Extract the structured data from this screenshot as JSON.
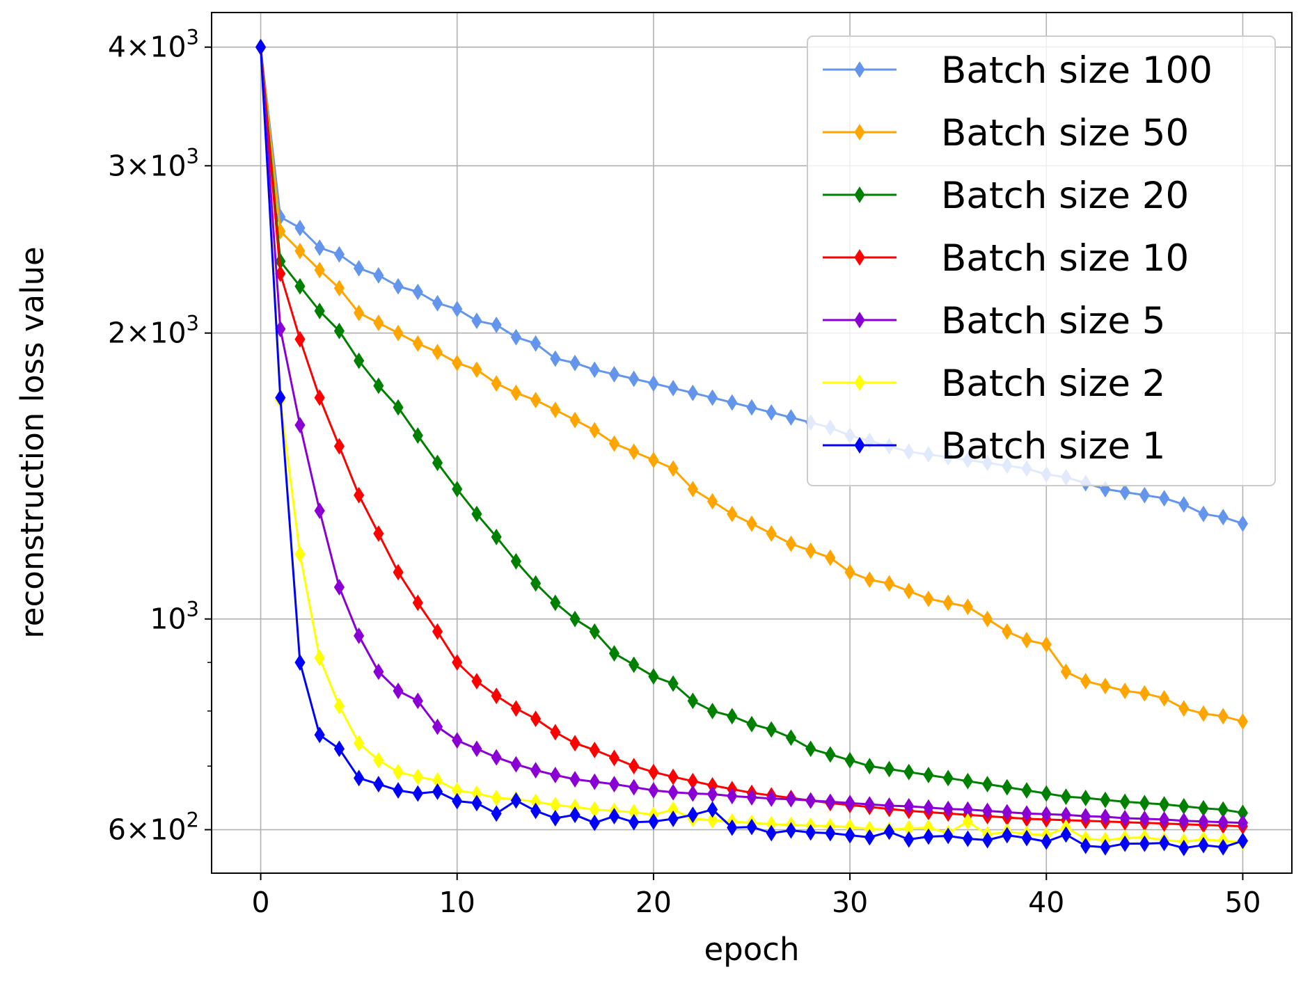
{
  "chart_data": {
    "type": "line",
    "title": "",
    "xlabel": "epoch",
    "ylabel": "reconstruction loss value",
    "yscale": "log",
    "xlim": [
      -2.5,
      52.5
    ],
    "ylim": [
      540,
      4350
    ],
    "grid": true,
    "legend_position": "upper right",
    "x_ticks": [
      0,
      10,
      20,
      30,
      40,
      50
    ],
    "y_ticks_major": [
      {
        "value": 1000,
        "base": "10",
        "exp": "3",
        "mult": ""
      },
      {
        "value": 2000,
        "base": "10",
        "exp": "3",
        "mult": "2"
      },
      {
        "value": 3000,
        "base": "10",
        "exp": "3",
        "mult": "3"
      },
      {
        "value": 4000,
        "base": "10",
        "exp": "3",
        "mult": "4"
      },
      {
        "value": 600,
        "base": "10",
        "exp": "2",
        "mult": "6"
      }
    ],
    "y_ticks_minor": [
      700,
      800,
      900
    ],
    "x": [
      0,
      1,
      2,
      3,
      4,
      5,
      6,
      7,
      8,
      9,
      10,
      11,
      12,
      13,
      14,
      15,
      16,
      17,
      18,
      19,
      20,
      21,
      22,
      23,
      24,
      25,
      26,
      27,
      28,
      29,
      30,
      31,
      32,
      33,
      34,
      35,
      36,
      37,
      38,
      39,
      40,
      41,
      42,
      43,
      44,
      45,
      46,
      47,
      48,
      49,
      50
    ],
    "series": [
      {
        "name": "Batch size 100",
        "color": "#6495ED",
        "values": [
          4000,
          2650,
          2580,
          2460,
          2420,
          2340,
          2300,
          2240,
          2210,
          2150,
          2120,
          2060,
          2040,
          1980,
          1950,
          1880,
          1860,
          1830,
          1810,
          1790,
          1770,
          1750,
          1730,
          1710,
          1690,
          1670,
          1650,
          1630,
          1610,
          1590,
          1560,
          1540,
          1520,
          1500,
          1490,
          1480,
          1470,
          1460,
          1450,
          1440,
          1420,
          1410,
          1390,
          1370,
          1360,
          1350,
          1340,
          1320,
          1290,
          1280,
          1260
        ]
      },
      {
        "name": "Batch size 50",
        "color": "#FFA500",
        "values": [
          4000,
          2560,
          2440,
          2330,
          2230,
          2100,
          2050,
          2000,
          1950,
          1910,
          1860,
          1830,
          1770,
          1730,
          1700,
          1660,
          1620,
          1580,
          1530,
          1500,
          1470,
          1440,
          1370,
          1330,
          1290,
          1260,
          1230,
          1200,
          1180,
          1160,
          1120,
          1100,
          1090,
          1070,
          1050,
          1040,
          1030,
          1000,
          970,
          950,
          940,
          880,
          860,
          850,
          840,
          835,
          825,
          805,
          795,
          790,
          780
        ]
      },
      {
        "name": "Batch size 20",
        "color": "#008000",
        "values": [
          4000,
          2380,
          2240,
          2110,
          2010,
          1870,
          1760,
          1670,
          1560,
          1460,
          1370,
          1290,
          1220,
          1150,
          1090,
          1040,
          1000,
          970,
          920,
          895,
          870,
          855,
          820,
          800,
          790,
          775,
          765,
          750,
          730,
          720,
          710,
          700,
          695,
          690,
          685,
          680,
          675,
          670,
          665,
          660,
          655,
          650,
          648,
          645,
          642,
          640,
          638,
          635,
          632,
          630,
          625
        ]
      },
      {
        "name": "Batch size 10",
        "color": "#FF0000",
        "values": [
          4000,
          2310,
          1970,
          1710,
          1520,
          1350,
          1230,
          1120,
          1040,
          970,
          900,
          860,
          830,
          805,
          785,
          760,
          740,
          728,
          714,
          700,
          690,
          682,
          675,
          668,
          662,
          656,
          652,
          648,
          644,
          640,
          637,
          634,
          631,
          628,
          626,
          624,
          622,
          620,
          618,
          616,
          615,
          614,
          613,
          612,
          611,
          610,
          609,
          608,
          607,
          606,
          605
        ]
      },
      {
        "name": "Batch size 5",
        "color": "#8A00D4",
        "values": [
          4000,
          2020,
          1600,
          1300,
          1080,
          960,
          880,
          840,
          820,
          770,
          745,
          730,
          715,
          703,
          693,
          685,
          678,
          674,
          670,
          665,
          660,
          657,
          655,
          654,
          651,
          649,
          647,
          646,
          644,
          642,
          640,
          638,
          636,
          635,
          633,
          631,
          630,
          628,
          626,
          624,
          623,
          622,
          620,
          619,
          617,
          616,
          615,
          613,
          612,
          611,
          610
        ]
      },
      {
        "name": "Batch size 2",
        "color": "#FFFF00",
        "values": [
          4000,
          1700,
          1170,
          910,
          810,
          740,
          710,
          690,
          682,
          676,
          660,
          655,
          648,
          646,
          642,
          637,
          634,
          630,
          628,
          626,
          622,
          630,
          616,
          614,
          612,
          610,
          608,
          607,
          606,
          605,
          604,
          601,
          600,
          602,
          603,
          595,
          612,
          593,
          597,
          594,
          592,
          603,
          587,
          585,
          588,
          589,
          585,
          583,
          586,
          584,
          582
        ]
      },
      {
        "name": "Batch size 1",
        "color": "#0000FF",
        "values": [
          4000,
          1710,
          900,
          755,
          730,
          680,
          670,
          660,
          655,
          658,
          643,
          640,
          624,
          644,
          628,
          617,
          622,
          610,
          620,
          611,
          612,
          616,
          622,
          630,
          603,
          604,
          595,
          599,
          596,
          595,
          592,
          589,
          597,
          586,
          590,
          591,
          587,
          585,
          592,
          588,
          583,
          593,
          577,
          575,
          580,
          580,
          581,
          574,
          578,
          575,
          584
        ]
      }
    ]
  }
}
